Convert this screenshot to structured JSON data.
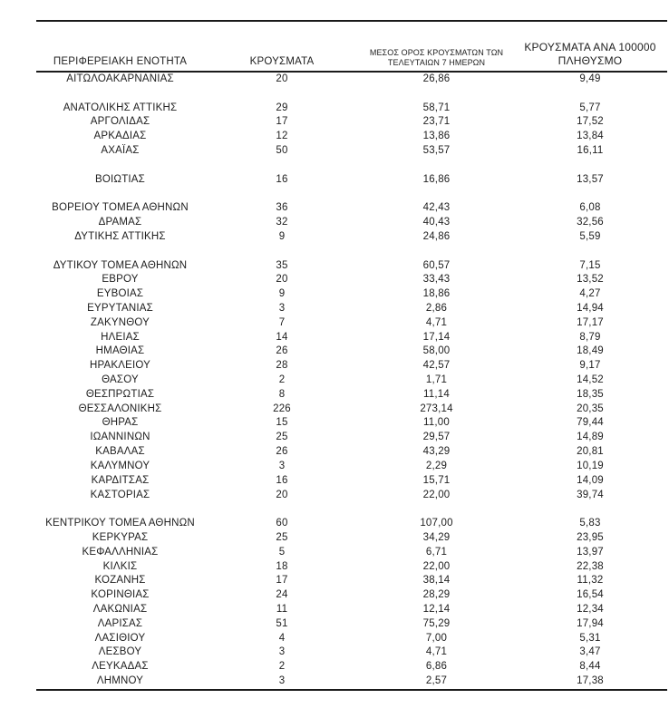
{
  "colors": {
    "background": "#ffffff",
    "text": "#212121",
    "rule": "#1a1a1a"
  },
  "table": {
    "headers": {
      "region": "ΠΕΡΙΦΕΡΕΙΑΚΗ ΕΝΟΤΗΤΑ",
      "cases": "ΚΡΟΥΣΜΑΤΑ",
      "avg7_line1": "ΜΕΣΟΣ ΟΡΟΣ ΚΡΟΥΣΜΑΤΩΝ ΤΩΝ",
      "avg7_line2": "ΤΕΛΕΥΤΑΙΩΝ 7 ΗΜΕΡΩΝ",
      "per100k_line1": "ΚΡΟΥΣΜΑΤΑ ΑΝΑ 100000",
      "per100k_line2": "ΠΛΗΘΥΣΜΟ"
    },
    "rows": [
      {
        "region": "ΑΙΤΩΛΟΑΚΑΡΝΑΝΙΑΣ",
        "cases": "20",
        "avg7": "26,86",
        "per100k": "9,49"
      },
      {
        "spacer": true
      },
      {
        "region": "ΑΝΑΤΟΛΙΚΗΣ ΑΤΤΙΚΗΣ",
        "cases": "29",
        "avg7": "58,71",
        "per100k": "5,77"
      },
      {
        "region": "ΑΡΓΟΛΙΔΑΣ",
        "cases": "17",
        "avg7": "23,71",
        "per100k": "17,52"
      },
      {
        "region": "ΑΡΚΑΔΙΑΣ",
        "cases": "12",
        "avg7": "13,86",
        "per100k": "13,84"
      },
      {
        "region": "ΑΧΑΪΑΣ",
        "cases": "50",
        "avg7": "53,57",
        "per100k": "16,11"
      },
      {
        "spacer": true
      },
      {
        "region": "ΒΟΙΩΤΙΑΣ",
        "cases": "16",
        "avg7": "16,86",
        "per100k": "13,57"
      },
      {
        "spacer": true
      },
      {
        "region": "ΒΟΡΕΙΟΥ ΤΟΜΕΑ ΑΘΗΝΩΝ",
        "cases": "36",
        "avg7": "42,43",
        "per100k": "6,08"
      },
      {
        "region": "ΔΡΑΜΑΣ",
        "cases": "32",
        "avg7": "40,43",
        "per100k": "32,56"
      },
      {
        "region": "ΔΥΤΙΚΗΣ ΑΤΤΙΚΗΣ",
        "cases": "9",
        "avg7": "24,86",
        "per100k": "5,59"
      },
      {
        "spacer": true
      },
      {
        "region": "ΔΥΤΙΚΟΥ ΤΟΜΕΑ ΑΘΗΝΩΝ",
        "cases": "35",
        "avg7": "60,57",
        "per100k": "7,15"
      },
      {
        "region": "ΕΒΡΟΥ",
        "cases": "20",
        "avg7": "33,43",
        "per100k": "13,52"
      },
      {
        "region": "ΕΥΒΟΙΑΣ",
        "cases": "9",
        "avg7": "18,86",
        "per100k": "4,27"
      },
      {
        "region": "ΕΥΡΥΤΑΝΙΑΣ",
        "cases": "3",
        "avg7": "2,86",
        "per100k": "14,94"
      },
      {
        "region": "ΖΑΚΥΝΘΟΥ",
        "cases": "7",
        "avg7": "4,71",
        "per100k": "17,17"
      },
      {
        "region": "ΗΛΕΙΑΣ",
        "cases": "14",
        "avg7": "17,14",
        "per100k": "8,79"
      },
      {
        "region": "ΗΜΑΘΙΑΣ",
        "cases": "26",
        "avg7": "58,00",
        "per100k": "18,49"
      },
      {
        "region": "ΗΡΑΚΛΕΙΟΥ",
        "cases": "28",
        "avg7": "42,57",
        "per100k": "9,17"
      },
      {
        "region": "ΘΑΣΟΥ",
        "cases": "2",
        "avg7": "1,71",
        "per100k": "14,52"
      },
      {
        "region": "ΘΕΣΠΡΩΤΙΑΣ",
        "cases": "8",
        "avg7": "11,14",
        "per100k": "18,35"
      },
      {
        "region": "ΘΕΣΣΑΛΟΝΙΚΗΣ",
        "cases": "226",
        "avg7": "273,14",
        "per100k": "20,35"
      },
      {
        "region": "ΘΗΡΑΣ",
        "cases": "15",
        "avg7": "11,00",
        "per100k": "79,44"
      },
      {
        "region": "ΙΩΑΝΝΙΝΩΝ",
        "cases": "25",
        "avg7": "29,57",
        "per100k": "14,89"
      },
      {
        "region": "ΚΑΒΑΛΑΣ",
        "cases": "26",
        "avg7": "43,29",
        "per100k": "20,81"
      },
      {
        "region": "ΚΑΛΥΜΝΟΥ",
        "cases": "3",
        "avg7": "2,29",
        "per100k": "10,19"
      },
      {
        "region": "ΚΑΡΔΙΤΣΑΣ",
        "cases": "16",
        "avg7": "15,71",
        "per100k": "14,09"
      },
      {
        "region": "ΚΑΣΤΟΡΙΑΣ",
        "cases": "20",
        "avg7": "22,00",
        "per100k": "39,74"
      },
      {
        "spacer": true
      },
      {
        "region": "ΚΕΝΤΡΙΚΟΥ ΤΟΜΕΑ ΑΘΗΝΩΝ",
        "cases": "60",
        "avg7": "107,00",
        "per100k": "5,83"
      },
      {
        "region": "ΚΕΡΚΥΡΑΣ",
        "cases": "25",
        "avg7": "34,29",
        "per100k": "23,95"
      },
      {
        "region": "ΚΕΦΑΛΛΗΝΙΑΣ",
        "cases": "5",
        "avg7": "6,71",
        "per100k": "13,97"
      },
      {
        "region": "ΚΙΛΚΙΣ",
        "cases": "18",
        "avg7": "22,00",
        "per100k": "22,38"
      },
      {
        "region": "ΚΟΖΑΝΗΣ",
        "cases": "17",
        "avg7": "38,14",
        "per100k": "11,32"
      },
      {
        "region": "ΚΟΡΙΝΘΙΑΣ",
        "cases": "24",
        "avg7": "28,29",
        "per100k": "16,54"
      },
      {
        "region": "ΛΑΚΩΝΙΑΣ",
        "cases": "11",
        "avg7": "12,14",
        "per100k": "12,34"
      },
      {
        "region": "ΛΑΡΙΣΑΣ",
        "cases": "51",
        "avg7": "75,29",
        "per100k": "17,94"
      },
      {
        "region": "ΛΑΣΙΘΙΟΥ",
        "cases": "4",
        "avg7": "7,00",
        "per100k": "5,31"
      },
      {
        "region": "ΛΕΣΒΟΥ",
        "cases": "3",
        "avg7": "4,71",
        "per100k": "3,47"
      },
      {
        "region": "ΛΕΥΚΑΔΑΣ",
        "cases": "2",
        "avg7": "6,86",
        "per100k": "8,44"
      },
      {
        "region": "ΛΗΜΝΟΥ",
        "cases": "3",
        "avg7": "2,57",
        "per100k": "17,38"
      }
    ]
  }
}
